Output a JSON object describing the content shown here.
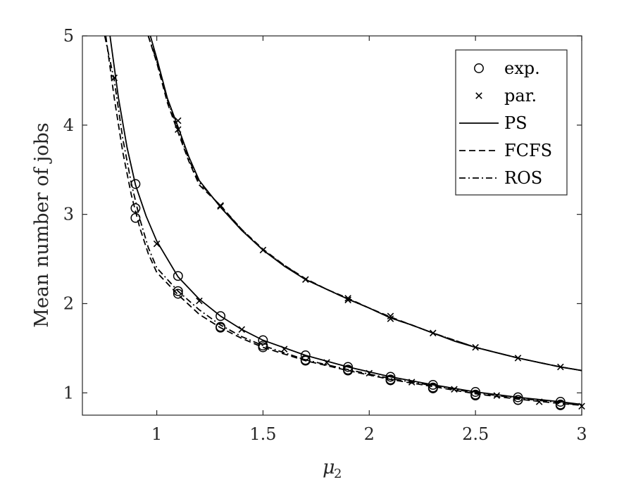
{
  "chart_data": {
    "type": "line",
    "title": "",
    "xlabel": "μ",
    "xlabel_subscript": "2",
    "ylabel": "Mean number of jobs",
    "xlim": [
      0.65,
      3.0
    ],
    "ylim": [
      0.75,
      5.0
    ],
    "xticks": [
      1,
      1.5,
      2,
      2.5,
      3
    ],
    "xtick_labels": [
      "1",
      "1.5",
      "2",
      "2.5",
      "3"
    ],
    "yticks": [
      1,
      2,
      3,
      4,
      5
    ],
    "ytick_labels": [
      "1",
      "2",
      "3",
      "4",
      "5"
    ],
    "legend_position": "top-right",
    "legend": [
      {
        "label": "exp.",
        "kind": "marker",
        "marker": "circle"
      },
      {
        "label": "par.",
        "kind": "marker",
        "marker": "cross"
      },
      {
        "label": "PS",
        "kind": "line",
        "dash": "solid"
      },
      {
        "label": "FCFS",
        "kind": "line",
        "dash": "dashed"
      },
      {
        "label": "ROS",
        "kind": "line",
        "dash": "dashdot"
      }
    ],
    "series": [
      {
        "name": "PS",
        "group": "exp",
        "dash": "solid",
        "x": [
          0.78,
          0.82,
          0.86,
          0.9,
          0.95,
          1.0,
          1.1,
          1.2,
          1.3,
          1.4,
          1.5,
          1.7,
          1.9,
          2.1,
          2.3,
          2.5,
          2.7,
          2.9,
          3.0
        ],
        "y": [
          5.0,
          4.3,
          3.75,
          3.33,
          2.98,
          2.7,
          2.3,
          2.05,
          1.86,
          1.71,
          1.59,
          1.42,
          1.29,
          1.18,
          1.09,
          1.01,
          0.95,
          0.9,
          0.87
        ]
      },
      {
        "name": "FCFS",
        "group": "exp",
        "dash": "dashed",
        "x": [
          0.76,
          0.8,
          0.84,
          0.88,
          0.92,
          0.96,
          1.0,
          1.1,
          1.2,
          1.3,
          1.4,
          1.5,
          1.7,
          1.9,
          2.1,
          2.3,
          2.5,
          2.7,
          2.9,
          3.0
        ],
        "y": [
          5.0,
          4.3,
          3.7,
          3.22,
          2.85,
          2.56,
          2.35,
          2.1,
          1.88,
          1.73,
          1.61,
          1.51,
          1.36,
          1.25,
          1.15,
          1.07,
          0.99,
          0.93,
          0.88,
          0.86
        ]
      },
      {
        "name": "ROS",
        "group": "exp",
        "dash": "dashdot",
        "x": [
          0.755,
          0.8,
          0.84,
          0.88,
          0.92,
          0.96,
          1.0,
          1.1,
          1.2,
          1.3,
          1.4,
          1.5,
          1.7,
          1.9,
          2.1,
          2.3,
          2.5,
          2.7,
          2.9,
          3.0
        ],
        "y": [
          5.0,
          4.5,
          3.85,
          3.35,
          2.95,
          2.63,
          2.4,
          2.14,
          1.93,
          1.76,
          1.63,
          1.53,
          1.37,
          1.26,
          1.16,
          1.08,
          1.0,
          0.94,
          0.89,
          0.86
        ]
      },
      {
        "name": "PS",
        "group": "par",
        "dash": "solid",
        "x": [
          0.97,
          1.0,
          1.05,
          1.1,
          1.15,
          1.2,
          1.3,
          1.4,
          1.5,
          1.6,
          1.7,
          1.8,
          1.9,
          2.0,
          2.1,
          2.2,
          2.3,
          2.4,
          2.5,
          2.6,
          2.7,
          2.8,
          2.9,
          3.0
        ],
        "y": [
          5.0,
          4.75,
          4.3,
          3.98,
          3.65,
          3.38,
          3.08,
          2.82,
          2.6,
          2.42,
          2.27,
          2.16,
          2.05,
          1.95,
          1.84,
          1.76,
          1.67,
          1.58,
          1.51,
          1.45,
          1.39,
          1.34,
          1.29,
          1.25
        ]
      },
      {
        "name": "FCFS",
        "group": "par",
        "dash": "dashed",
        "x": [
          0.96,
          1.0,
          1.05,
          1.1,
          1.15,
          1.2,
          1.3,
          1.4,
          1.5,
          1.6,
          1.7,
          1.8,
          1.9,
          2.0,
          2.1,
          2.2,
          2.3,
          2.4,
          2.5,
          2.6,
          2.7,
          2.8,
          2.9,
          3.0
        ],
        "y": [
          5.0,
          4.7,
          4.25,
          3.92,
          3.6,
          3.33,
          3.1,
          2.83,
          2.61,
          2.43,
          2.28,
          2.16,
          2.06,
          1.95,
          1.85,
          1.76,
          1.67,
          1.59,
          1.51,
          1.45,
          1.39,
          1.34,
          1.29,
          1.25
        ]
      },
      {
        "name": "ROS",
        "group": "par",
        "dash": "dashdot",
        "x": [
          0.96,
          1.0,
          1.05,
          1.1,
          1.15,
          1.2,
          1.3,
          1.4,
          1.5,
          1.6,
          1.7,
          1.8,
          1.9,
          2.0,
          2.1,
          2.2,
          2.3,
          2.4,
          2.5,
          2.6,
          2.7,
          2.8,
          2.9,
          3.0
        ],
        "y": [
          5.0,
          4.72,
          4.28,
          3.95,
          3.62,
          3.36,
          3.09,
          2.83,
          2.6,
          2.43,
          2.27,
          2.16,
          2.05,
          1.95,
          1.84,
          1.76,
          1.67,
          1.59,
          1.51,
          1.45,
          1.39,
          1.34,
          1.29,
          1.25
        ]
      }
    ],
    "markers_exp": {
      "x": [
        0.9,
        0.9,
        0.9,
        1.1,
        1.1,
        1.1,
        1.3,
        1.3,
        1.3,
        1.5,
        1.5,
        1.5,
        1.7,
        1.7,
        1.7,
        1.9,
        1.9,
        1.9,
        2.1,
        2.1,
        2.1,
        2.3,
        2.3,
        2.3,
        2.5,
        2.5,
        2.5,
        2.7,
        2.7,
        2.7,
        2.9,
        2.9,
        2.9
      ],
      "y": [
        3.34,
        3.07,
        2.96,
        2.31,
        2.14,
        2.11,
        1.86,
        1.74,
        1.73,
        1.59,
        1.53,
        1.51,
        1.42,
        1.37,
        1.36,
        1.29,
        1.26,
        1.25,
        1.18,
        1.15,
        1.14,
        1.09,
        1.06,
        1.05,
        1.01,
        0.98,
        0.97,
        0.95,
        0.92,
        0.92,
        0.9,
        0.87,
        0.86
      ]
    },
    "markers_par": {
      "x": [
        0.8,
        1.0,
        1.2,
        1.4,
        1.6,
        1.8,
        2.0,
        2.2,
        2.4,
        2.6,
        2.8,
        3.0,
        1.1,
        1.1,
        1.3,
        1.3,
        1.5,
        1.7,
        1.9,
        1.9,
        2.1,
        2.1,
        2.3,
        2.5,
        2.7,
        2.9
      ],
      "y": [
        4.53,
        2.67,
        2.03,
        1.71,
        1.49,
        1.34,
        1.22,
        1.12,
        1.04,
        0.97,
        0.9,
        0.85,
        4.05,
        3.95,
        3.1,
        3.09,
        2.6,
        2.27,
        2.06,
        2.04,
        1.86,
        1.83,
        1.67,
        1.51,
        1.39,
        1.29
      ]
    }
  }
}
